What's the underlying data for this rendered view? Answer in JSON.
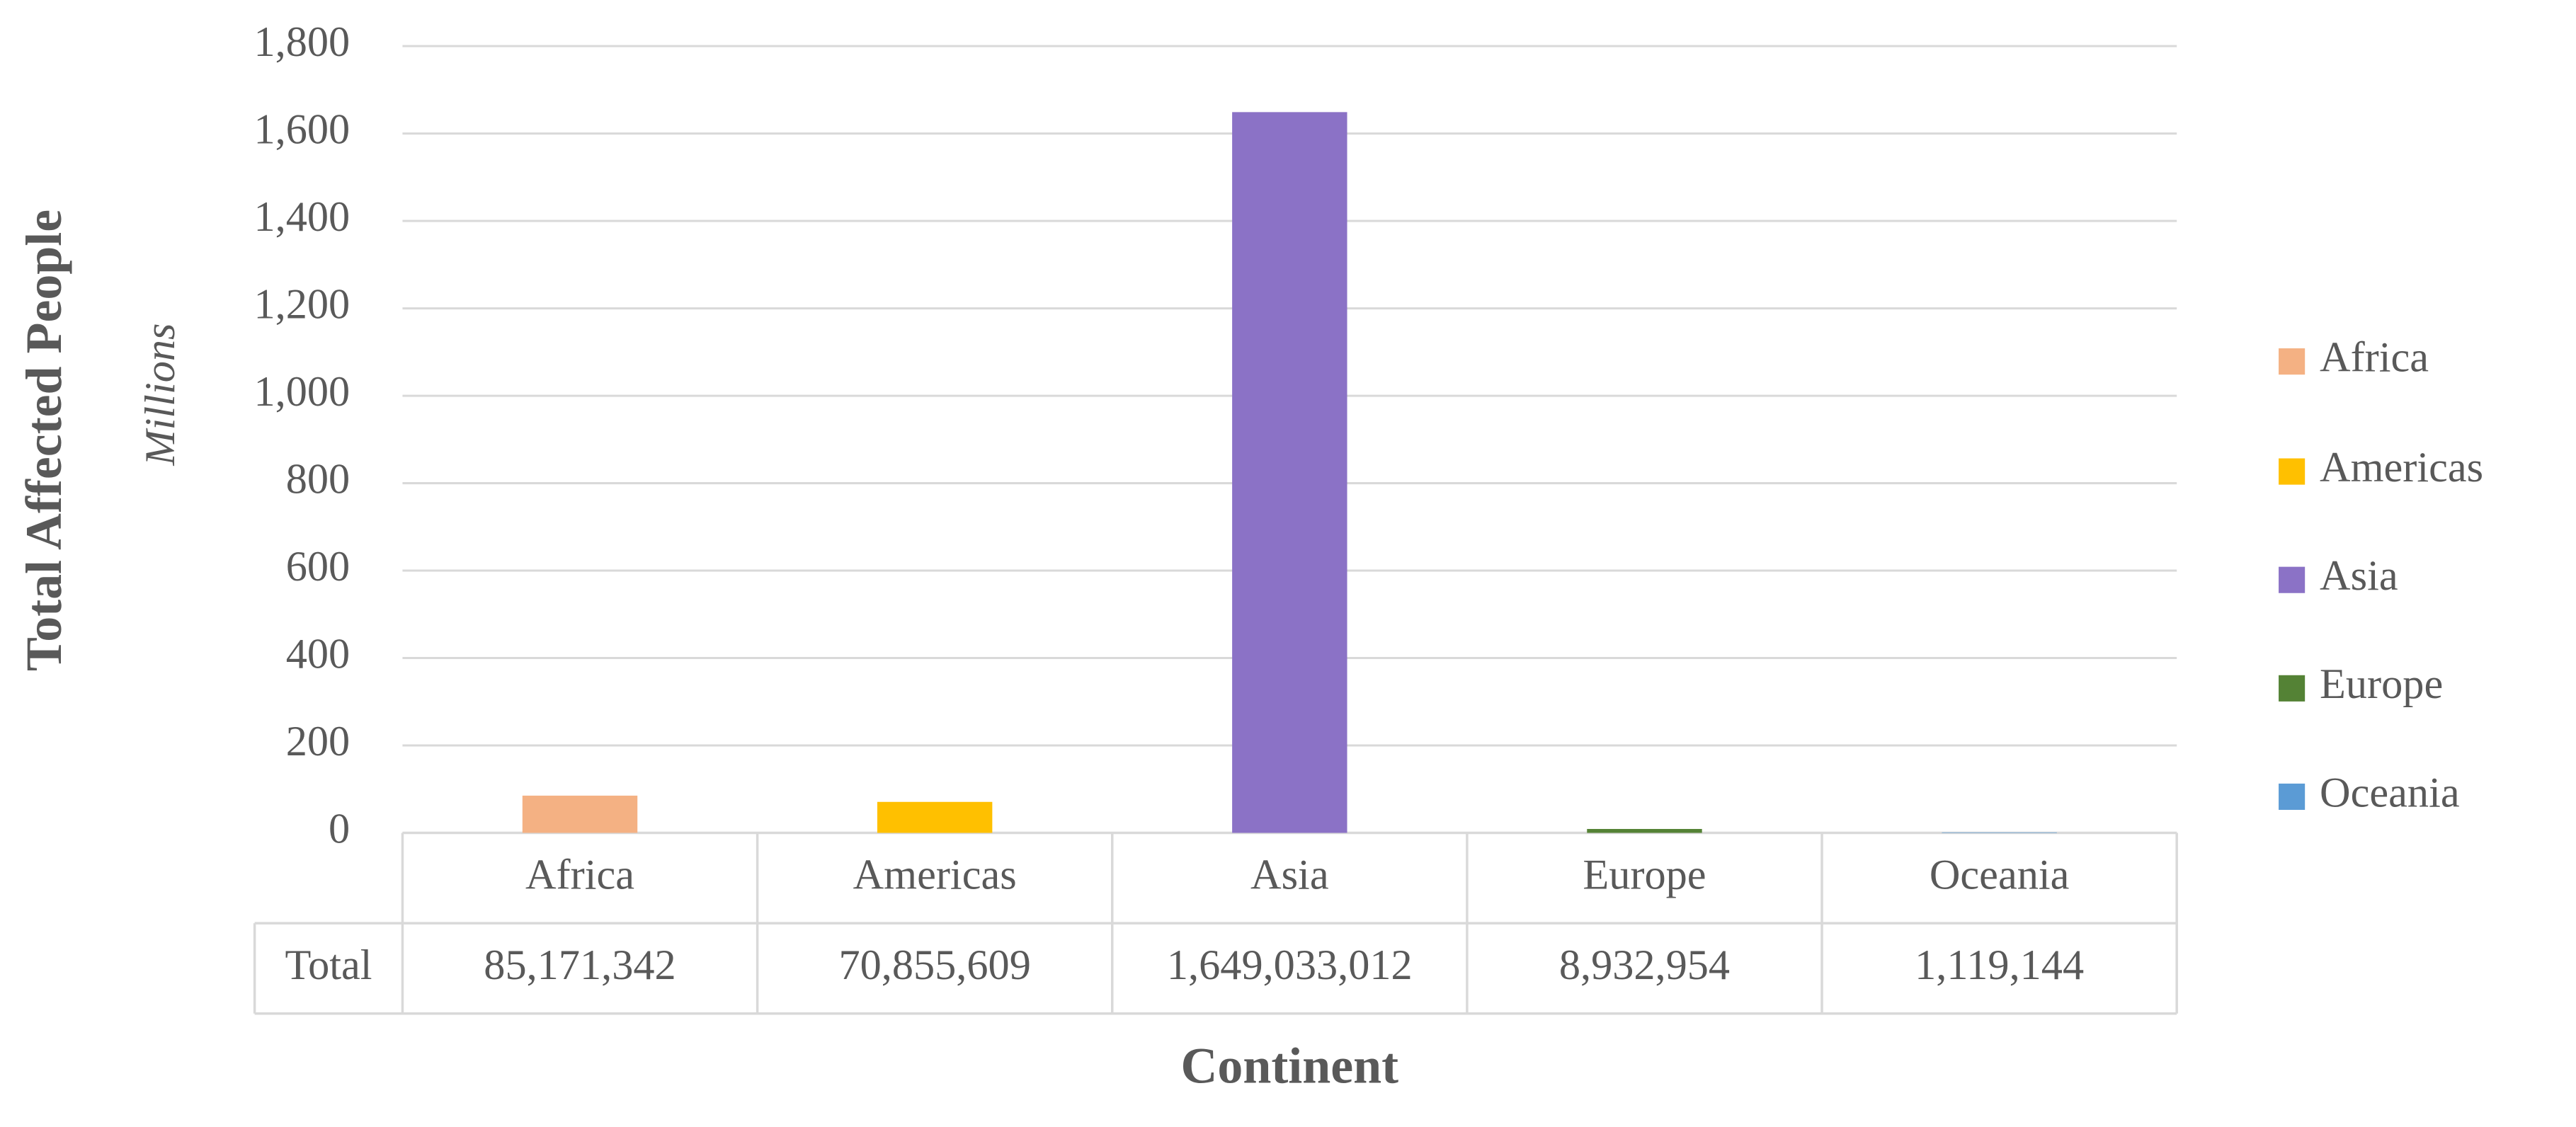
{
  "chart_data": {
    "type": "bar",
    "y_axis_title": "Total Affected People",
    "y_axis_subtitle": "Millions",
    "x_axis_title": "Continent",
    "categories": [
      "Africa",
      "Americas",
      "Asia",
      "Europe",
      "Oceania"
    ],
    "values": [
      85.171342,
      70.855609,
      1649.033012,
      8.932954,
      1.119144
    ],
    "value_labels": [
      "85,171,342",
      "70,855,609",
      "1,649,033,012",
      "8,932,954",
      "1,119,144"
    ],
    "table_row_label": "Total",
    "colors": [
      "#f4b183",
      "#ffc000",
      "#8b72c6",
      "#548235",
      "#5b9bd5"
    ],
    "ylim": [
      0,
      1800
    ],
    "yticks": [
      0,
      200,
      400,
      600,
      800,
      {
        "value": 1000,
        "label": "1,000"
      },
      {
        "value": 1200,
        "label": "1,200"
      },
      {
        "value": 1400,
        "label": "1,400"
      },
      {
        "value": 1600,
        "label": "1,600"
      },
      {
        "value": 1800,
        "label": "1,800"
      }
    ],
    "grid": true,
    "legend": "right"
  }
}
